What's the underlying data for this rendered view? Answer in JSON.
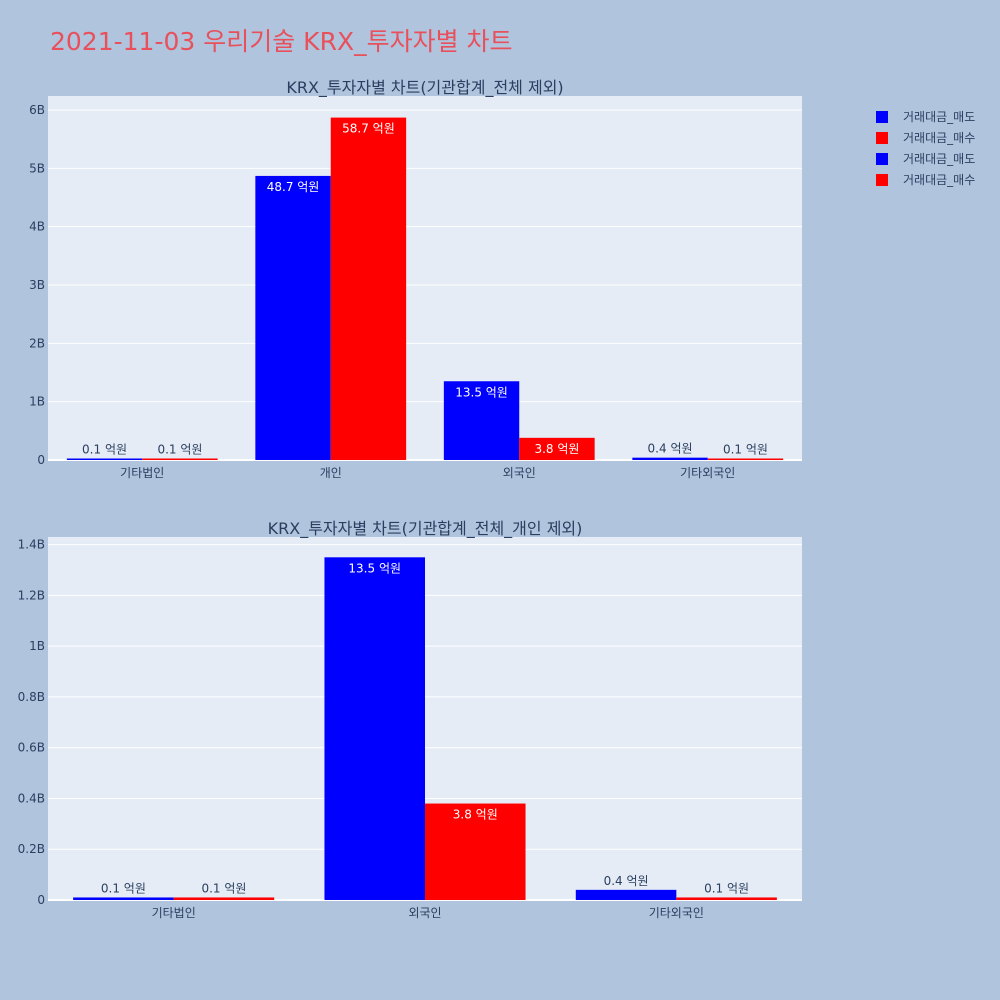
{
  "page": {
    "title": "2021-11-03 우리기술 KRX_투자자별 차트"
  },
  "colors": {
    "background": "#b0c4de",
    "plot_bg": "#e5ecf6",
    "sell": "#0000ff",
    "buy": "#ff0000",
    "title": "#e8505b",
    "text": "#2a3f5f"
  },
  "legend": [
    {
      "label": "거래대금_매도",
      "color": "#0000ff"
    },
    {
      "label": "거래대금_매수",
      "color": "#ff0000"
    },
    {
      "label": "거래대금_매도",
      "color": "#0000ff"
    },
    {
      "label": "거래대금_매수",
      "color": "#ff0000"
    }
  ],
  "chart_data": [
    {
      "type": "bar",
      "title": "KRX_투자자별 차트(기관합계_전체 제외)",
      "categories": [
        "기타법인",
        "개인",
        "외국인",
        "기타외국인"
      ],
      "series": [
        {
          "name": "거래대금_매도",
          "color": "#0000ff",
          "values": [
            10000000,
            4870000000,
            1350000000,
            40000000
          ],
          "labels": [
            "0.1 억원",
            "48.7 억원",
            "13.5 억원",
            "0.4 억원"
          ]
        },
        {
          "name": "거래대금_매수",
          "color": "#ff0000",
          "values": [
            10000000,
            5870000000,
            380000000,
            10000000
          ],
          "labels": [
            "0.1 억원",
            "58.7 억원",
            "3.8 억원",
            "0.1 억원"
          ]
        }
      ],
      "yticks": [
        0,
        1000000000,
        2000000000,
        3000000000,
        4000000000,
        5000000000,
        6000000000
      ],
      "ytick_labels": [
        "0",
        "1B",
        "2B",
        "3B",
        "4B",
        "5B",
        "6B"
      ],
      "ylim": [
        0,
        6240000000
      ],
      "grid": true,
      "legend_position": "top-right"
    },
    {
      "type": "bar",
      "title": "KRX_투자자별 차트(기관합계_전체_개인 제외)",
      "categories": [
        "기타법인",
        "외국인",
        "기타외국인"
      ],
      "series": [
        {
          "name": "거래대금_매도",
          "color": "#0000ff",
          "values": [
            10000000,
            1350000000,
            40000000
          ],
          "labels": [
            "0.1 억원",
            "13.5 억원",
            "0.4 억원"
          ]
        },
        {
          "name": "거래대금_매수",
          "color": "#ff0000",
          "values": [
            10000000,
            380000000,
            10000000
          ],
          "labels": [
            "0.1 억원",
            "3.8 억원",
            "0.1 억원"
          ]
        }
      ],
      "yticks": [
        0,
        200000000,
        400000000,
        600000000,
        800000000,
        1000000000,
        1200000000,
        1400000000
      ],
      "ytick_labels": [
        "0",
        "0.2B",
        "0.4B",
        "0.6B",
        "0.8B",
        "1B",
        "1.2B",
        "1.4B"
      ],
      "ylim": [
        0,
        1430000000
      ],
      "grid": true,
      "legend_position": "top-right"
    }
  ]
}
